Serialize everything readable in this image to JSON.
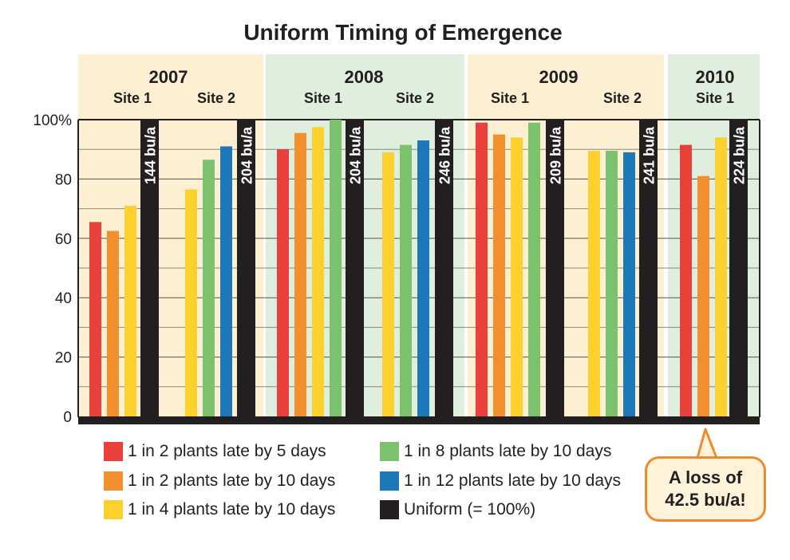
{
  "colors": {
    "warm_band": "#fdf0d2",
    "cool_band": "#dfeedd",
    "red": "#e8403a",
    "orange": "#f28f2f",
    "yellow": "#fcd12e",
    "green": "#7cc26e",
    "blue": "#1d78b8",
    "black": "#231f20",
    "callout_border": "#f08a2e"
  },
  "chart_data": {
    "type": "bar",
    "title": "Uniform Timing of Emergence",
    "ylim": [
      0,
      100
    ],
    "y_ticks": [
      "0",
      "20",
      "40",
      "60",
      "80",
      "100%"
    ],
    "grid": true,
    "years": [
      {
        "label": "2007",
        "band": "warm",
        "sites": [
          "Site 1",
          "Site 2"
        ]
      },
      {
        "label": "2008",
        "band": "cool",
        "sites": [
          "Site 1",
          "Site 2"
        ]
      },
      {
        "label": "2009",
        "band": "warm",
        "sites": [
          "Site 1",
          "Site 2"
        ]
      },
      {
        "label": "2010",
        "band": "cool",
        "sites": [
          "Site 1"
        ]
      }
    ],
    "groups": [
      {
        "year": "2007",
        "site": "Site 1",
        "uniform_label": "144 bu/a",
        "bars": [
          {
            "series": "red",
            "value": 65.5
          },
          {
            "series": "orange",
            "value": 62.5
          },
          {
            "series": "yellow",
            "value": 71
          }
        ]
      },
      {
        "year": "2007",
        "site": "Site 2",
        "uniform_label": "204 bu/a",
        "bars": [
          {
            "series": "yellow",
            "value": 76.5
          },
          {
            "series": "green",
            "value": 86.5
          },
          {
            "series": "blue",
            "value": 91
          }
        ]
      },
      {
        "year": "2008",
        "site": "Site 1",
        "uniform_label": "204 bu/a",
        "bars": [
          {
            "series": "red",
            "value": 90
          },
          {
            "series": "orange",
            "value": 95.5
          },
          {
            "series": "yellow",
            "value": 97.5
          },
          {
            "series": "green",
            "value": 100
          }
        ]
      },
      {
        "year": "2008",
        "site": "Site 2",
        "uniform_label": "246 bu/a",
        "bars": [
          {
            "series": "yellow",
            "value": 89
          },
          {
            "series": "green",
            "value": 91.5
          },
          {
            "series": "blue",
            "value": 93
          }
        ]
      },
      {
        "year": "2009",
        "site": "Site 1",
        "uniform_label": "209 bu/a",
        "bars": [
          {
            "series": "red",
            "value": 99
          },
          {
            "series": "orange",
            "value": 95
          },
          {
            "series": "yellow",
            "value": 94
          },
          {
            "series": "green",
            "value": 99
          }
        ]
      },
      {
        "year": "2009",
        "site": "Site 2",
        "uniform_label": "241 bu/a",
        "bars": [
          {
            "series": "yellow",
            "value": 89.5
          },
          {
            "series": "green",
            "value": 89.5
          },
          {
            "series": "blue",
            "value": 89
          }
        ]
      },
      {
        "year": "2010",
        "site": "Site 1",
        "uniform_label": "224 bu/a",
        "bars": [
          {
            "series": "red",
            "value": 91.5
          },
          {
            "series": "orange",
            "value": 81
          },
          {
            "series": "yellow",
            "value": 94
          }
        ]
      }
    ],
    "uniform_value": 100,
    "series": [
      {
        "key": "red",
        "name": "1 in 2 plants late by 5 days"
      },
      {
        "key": "orange",
        "name": "1 in 2 plants late by 10 days"
      },
      {
        "key": "yellow",
        "name": "1 in 4 plants late by 10 days"
      },
      {
        "key": "green",
        "name": "1 in 8 plants late by 10 days"
      },
      {
        "key": "blue",
        "name": "1 in 12 plants late by 10 days"
      },
      {
        "key": "black",
        "name": "Uniform (= 100%)"
      }
    ],
    "legend_position": "bottom",
    "annotation": {
      "line1": "A loss of",
      "line2": "42.5 bu/a!"
    }
  }
}
